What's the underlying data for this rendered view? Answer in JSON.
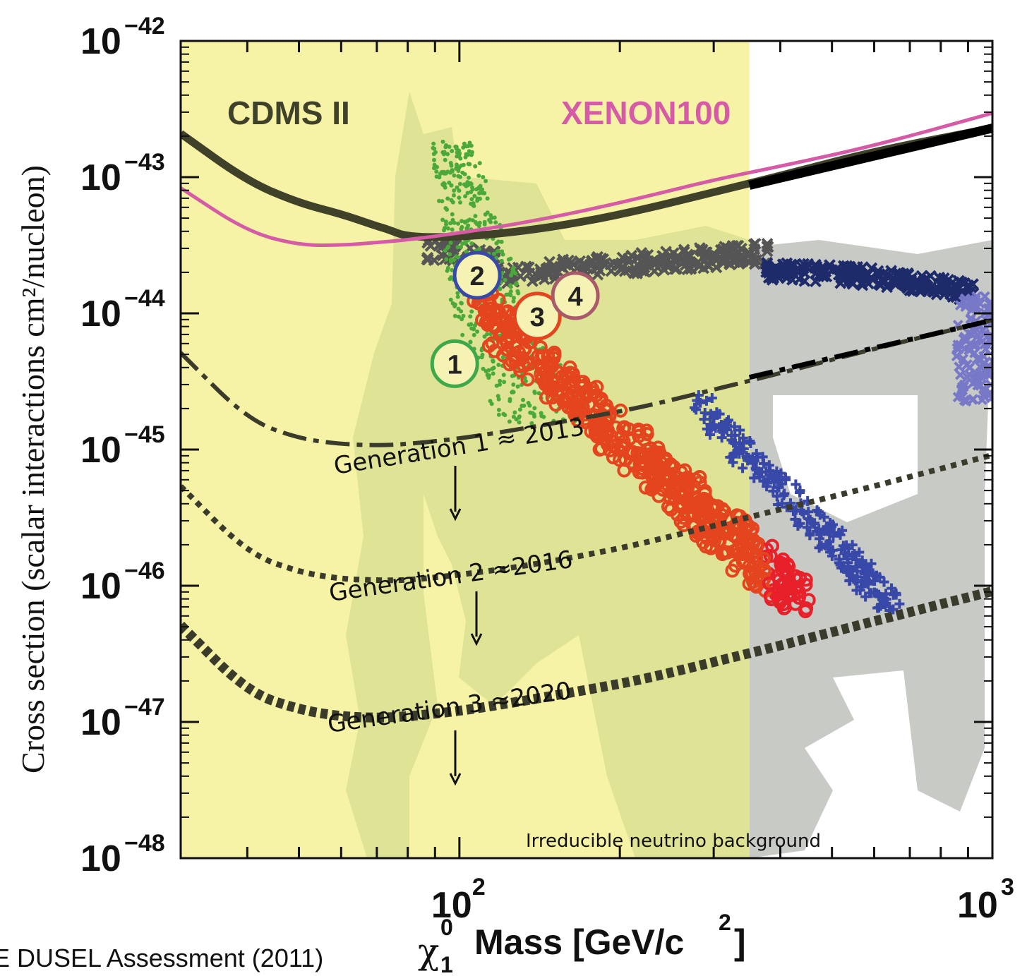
{
  "chart_data": {
    "type": "scatter",
    "scale": {
      "x": "log",
      "y": "log"
    },
    "xlim": [
      30,
      1000
    ],
    "ylim": [
      1e-48,
      1e-42
    ],
    "ylabel": "Cross section (scalar interactions cm²/nucleon)",
    "xlabel": {
      "symbol": "χ",
      "sup": "0",
      "sub": "1",
      "text": "Mass [GeV/c",
      "unit_sup": "2",
      "close": "]"
    },
    "x_ticks": [
      {
        "base": "10",
        "exp": "2",
        "value": 100
      },
      {
        "base": "10",
        "exp": "3",
        "value": 1000
      }
    ],
    "y_ticks": [
      {
        "base": "10",
        "exp": "−42",
        "value": -42
      },
      {
        "base": "10",
        "exp": "−43",
        "value": -43
      },
      {
        "base": "10",
        "exp": "−44",
        "value": -44
      },
      {
        "base": "10",
        "exp": "−45",
        "value": -45
      },
      {
        "base": "10",
        "exp": "−46",
        "value": -46
      },
      {
        "base": "10",
        "exp": "−47",
        "value": -47
      },
      {
        "base": "10",
        "exp": "−48",
        "value": -48
      }
    ],
    "accessible_mass_limit": 350,
    "colors": {
      "yellow": "#f7f3a6",
      "green_region": "#dde195",
      "gray_region": "#c8cac6",
      "cdms": "#3f4128",
      "xenon": "#d65ba6",
      "green_points": "#4aa93a",
      "red_points": "#e4451e",
      "dark_points": "#555555",
      "navy_points": "#1e2b6b",
      "blue_points": "#3848a8",
      "generation_curves": "#3a3b2a"
    },
    "series": [
      {
        "name": "CDMS II",
        "style": "solid",
        "width": 11,
        "x": [
          30,
          40,
          50,
          60,
          70,
          73,
          80,
          100,
          130,
          170,
          220,
          300,
          400,
          600,
          1000
        ],
        "log_y": [
          -42.68,
          -43.03,
          -43.19,
          -43.27,
          -43.36,
          -43.38,
          -43.44,
          -43.44,
          -43.4,
          -43.33,
          -43.24,
          -43.11,
          -42.99,
          -42.81,
          -42.64
        ]
      },
      {
        "name": "XENON100",
        "style": "solid",
        "width": 5,
        "x": [
          30,
          40,
          50,
          60,
          70,
          80,
          100,
          130,
          170,
          220,
          300,
          400,
          600,
          1000
        ],
        "log_y": [
          -43.08,
          -43.4,
          -43.5,
          -43.5,
          -43.48,
          -43.46,
          -43.41,
          -43.34,
          -43.25,
          -43.15,
          -43.02,
          -42.92,
          -42.77,
          -42.53
        ]
      },
      {
        "name": "Generation 1 ≈ 2013",
        "style": "dashdot",
        "width": 6,
        "x": [
          30,
          40,
          50,
          60,
          70,
          80,
          100,
          130,
          170,
          220,
          300,
          400,
          600,
          1000
        ],
        "log_y": [
          -44.29,
          -44.78,
          -44.92,
          -44.96,
          -44.97,
          -44.96,
          -44.92,
          -44.85,
          -44.77,
          -44.69,
          -44.56,
          -44.44,
          -44.26,
          -44.05
        ]
      },
      {
        "name": "Generation 2 ≈2016",
        "style": "dotted",
        "width": 8,
        "x": [
          30,
          40,
          50,
          60,
          70,
          80,
          100,
          130,
          170,
          220,
          300,
          400,
          600,
          1000
        ],
        "log_y": [
          -45.27,
          -45.76,
          -45.9,
          -45.95,
          -45.96,
          -45.96,
          -45.92,
          -45.86,
          -45.78,
          -45.69,
          -45.56,
          -45.44,
          -45.27,
          -45.04
        ]
      },
      {
        "name": "Generation 3 ≈2020",
        "style": "dotted",
        "width": 14,
        "x": [
          30,
          40,
          50,
          60,
          70,
          80,
          100,
          130,
          170,
          220,
          300,
          400,
          600,
          1000
        ],
        "log_y": [
          -46.29,
          -46.78,
          -46.91,
          -46.96,
          -46.97,
          -46.96,
          -46.92,
          -46.85,
          -46.77,
          -46.69,
          -46.56,
          -46.44,
          -46.26,
          -46.04
        ]
      }
    ],
    "point_clouds": [
      {
        "kind": "green-dots",
        "ranges": [
          [
            72,
            -43.75,
            75,
            -43.83,
            80,
            -43.92,
            82,
            -44.0,
            84,
            -44.05,
            86,
            -44.08,
            88,
            -44.1
          ],
          [
            72,
            -44.65,
            75,
            -44.4,
            78,
            -44.2,
            80,
            -44.05,
            83,
            -43.9,
            85,
            -43.7,
            88,
            -43.5
          ]
        ]
      },
      {
        "kind": "benchmarks",
        "labels": [
          "1",
          "2",
          "3",
          "4"
        ],
        "x": [
          98,
          108,
          140,
          165
        ],
        "log_y": [
          -44.37,
          -43.72,
          -44.02,
          -43.87
        ],
        "ring_colors": [
          "#3ea94a",
          "#3849a8",
          "#e4451e",
          "#a85a6b"
        ]
      }
    ],
    "annotations": [
      {
        "text": "CDMS II"
      },
      {
        "text": "XENON100"
      },
      {
        "text": "Generation 1 ≈ 2013"
      },
      {
        "text": "Generation 2 ≈2016"
      },
      {
        "text": "Generation 3 ≈2020"
      },
      {
        "text": "Irreducible neutrino  background"
      }
    ],
    "legend": "none",
    "grid": false
  },
  "source": "E DUSEL Assessment (2011)"
}
